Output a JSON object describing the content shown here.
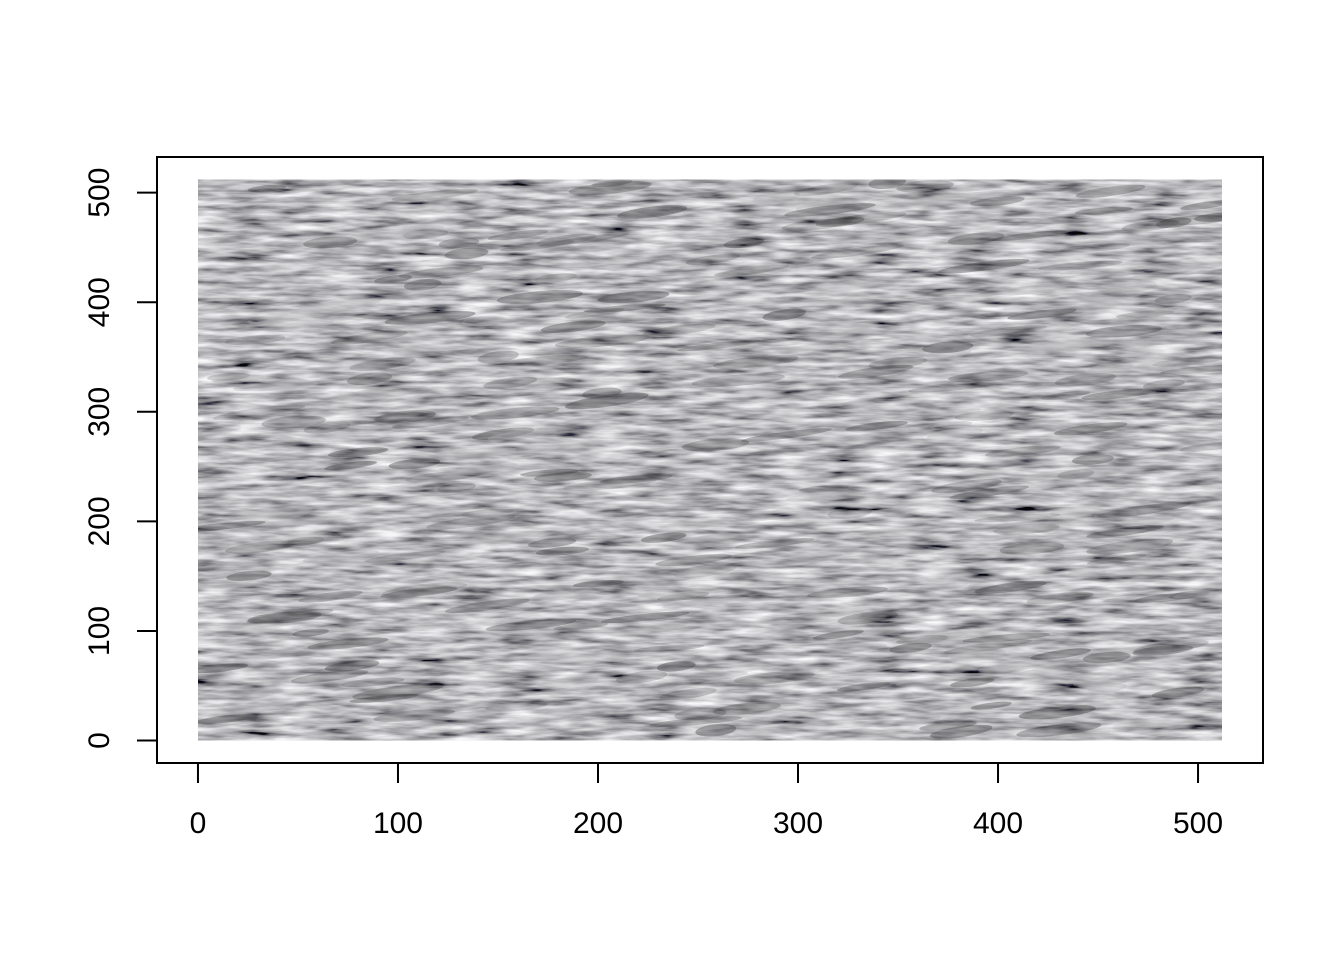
{
  "chart_data": {
    "type": "image",
    "title": "",
    "xlabel": "",
    "ylabel": "",
    "x_range": [
      0,
      512
    ],
    "y_range": [
      0,
      512
    ],
    "xlim": [
      -20.48,
      532.48
    ],
    "ylim": [
      -20.48,
      532.48
    ],
    "x_ticks": [
      0,
      100,
      200,
      300,
      400,
      500
    ],
    "y_ticks": [
      0,
      100,
      200,
      300,
      400,
      500
    ],
    "x_tick_labels": [
      "0",
      "100",
      "200",
      "300",
      "400",
      "500"
    ],
    "y_tick_labels": [
      "0",
      "100",
      "200",
      "300",
      "400",
      "500"
    ],
    "grid": false,
    "legend": "none",
    "raster_content": "grey woven fabric texture",
    "colors": {
      "raster_base": "#7d7d7d",
      "raster_dark": "#3c3c3e",
      "raster_light": "#b0b0b2",
      "axis": "#000000",
      "background": "#ffffff"
    }
  }
}
